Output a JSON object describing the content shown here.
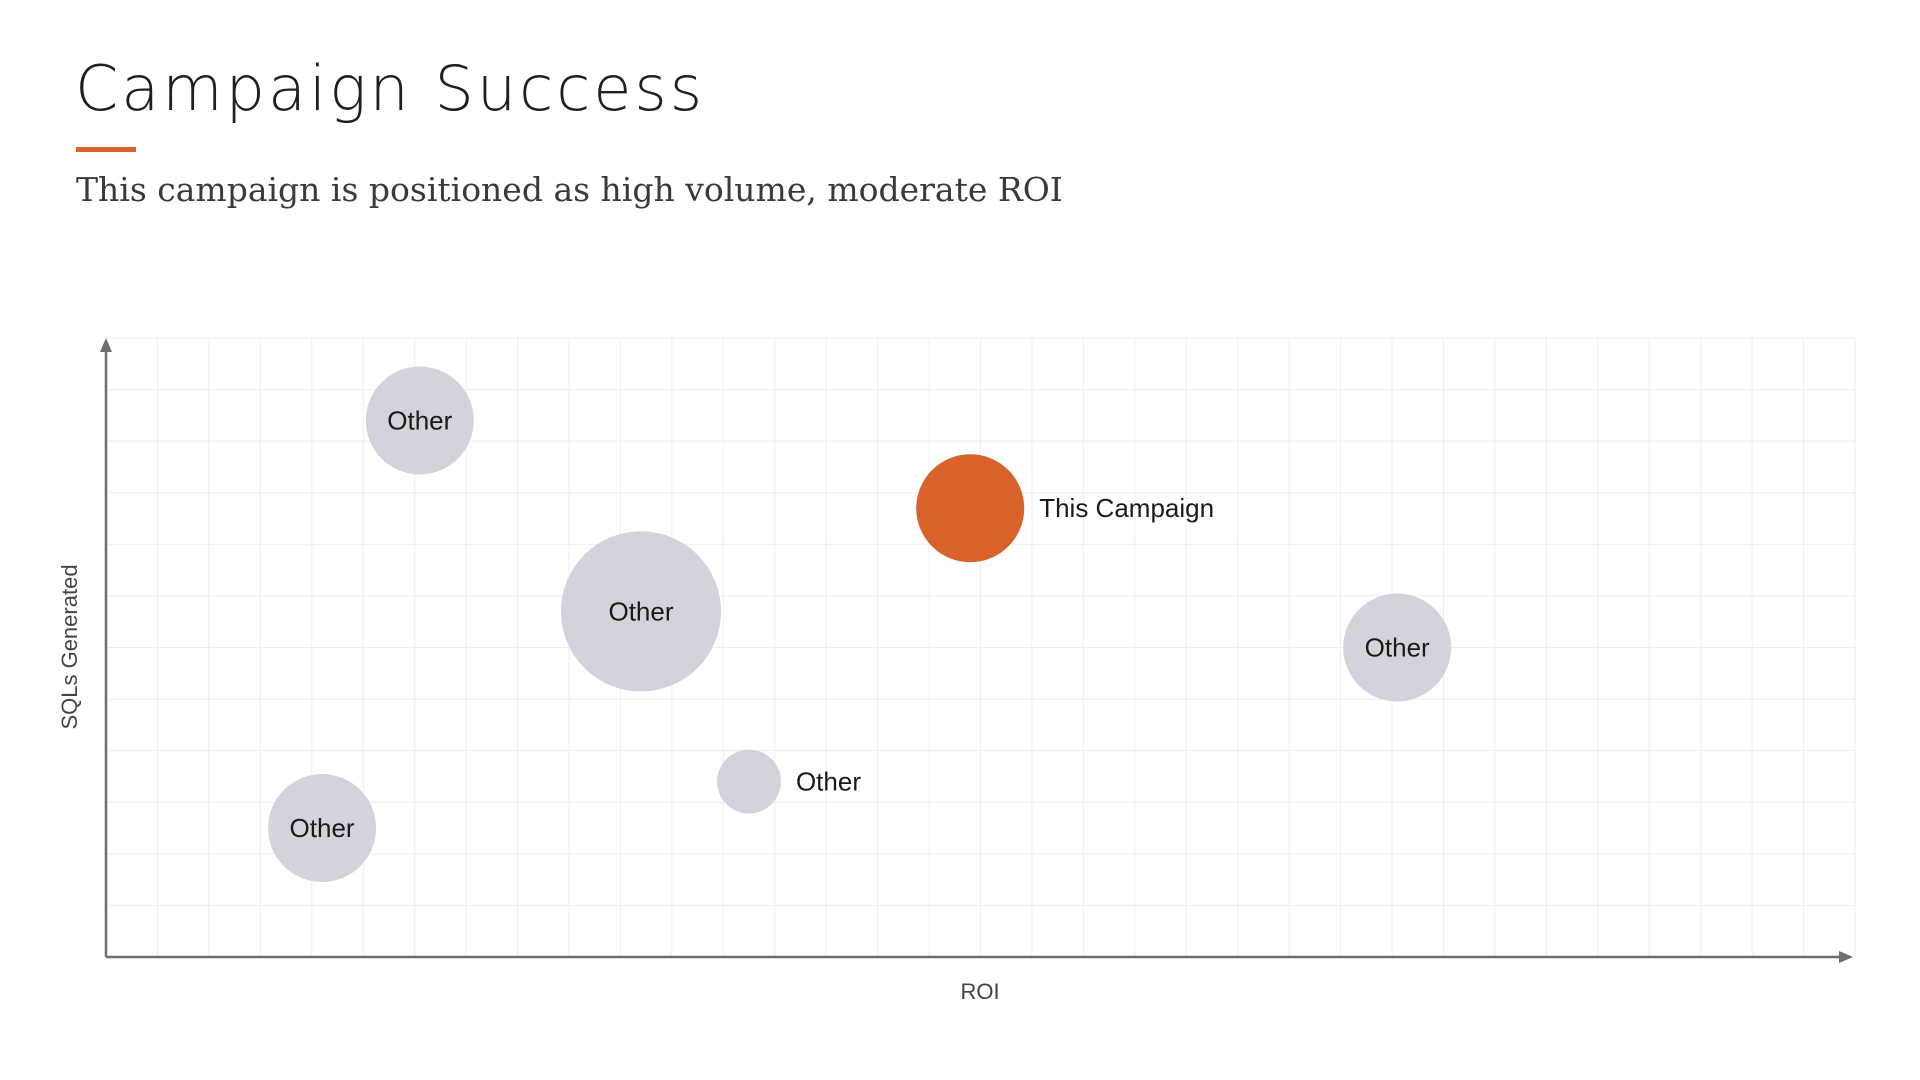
{
  "slide": {
    "title": "Campaign Success",
    "subtitle": "This campaign is positioned as high volume, moderate ROI"
  },
  "colors": {
    "accent": "#d9622b",
    "other_bubble": "#d1d4db",
    "axis": "#6e6e6e",
    "grid": "#eeeeee"
  },
  "chart_data": {
    "type": "scatter",
    "subtype": "bubble",
    "xlabel": "ROI",
    "ylabel": "SQLs Generated",
    "xlim": [
      0,
      34
    ],
    "ylim": [
      0,
      12
    ],
    "grid": true,
    "legend": "none",
    "points": [
      {
        "label": "Other",
        "x": 6.1,
        "y": 10.4,
        "size": 1.0,
        "highlight": false
      },
      {
        "label": "This Campaign",
        "x": 16.8,
        "y": 8.7,
        "size": 1.0,
        "highlight": true
      },
      {
        "label": "Other",
        "x": 10.4,
        "y": 6.7,
        "size": 2.2,
        "highlight": false
      },
      {
        "label": "Other",
        "x": 25.1,
        "y": 6.0,
        "size": 1.0,
        "highlight": false
      },
      {
        "label": "Other",
        "x": 12.5,
        "y": 3.4,
        "size": 0.35,
        "highlight": false
      },
      {
        "label": "Other",
        "x": 4.2,
        "y": 2.5,
        "size": 1.0,
        "highlight": false
      }
    ]
  }
}
